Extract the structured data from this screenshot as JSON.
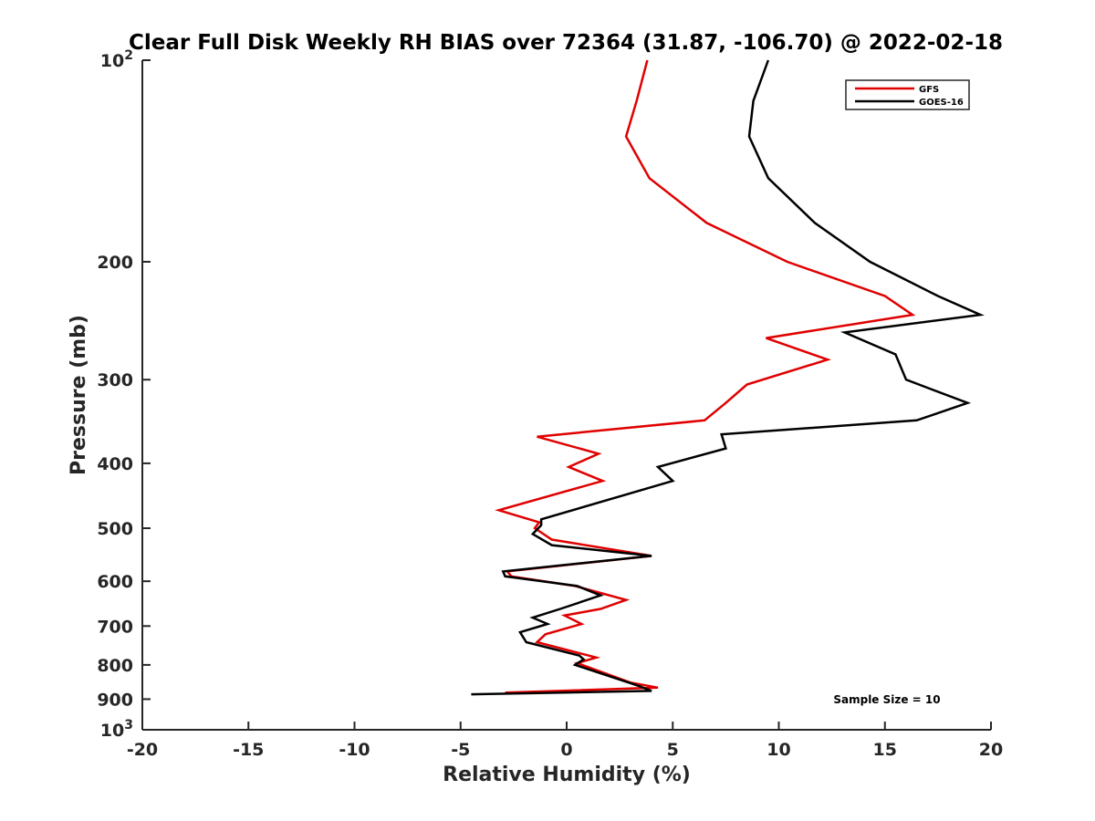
{
  "chart_data": {
    "type": "line",
    "title": "Clear Full Disk Weekly RH BIAS over 72364 (31.87, -106.70) @ 2022-02-18",
    "xlabel": "Relative Humidity (%)",
    "ylabel": "Pressure (mb)",
    "xlim": [
      -20,
      20
    ],
    "ylim": [
      100,
      1000
    ],
    "y_scale": "log",
    "y_reversed": true,
    "x_ticks": [
      "-20",
      "-15",
      "-10",
      "-5",
      "0",
      "5",
      "10",
      "15",
      "20"
    ],
    "y_ticks": [
      {
        "value": 100,
        "base": "10",
        "exp": "2"
      },
      {
        "value": 200,
        "label": "200"
      },
      {
        "value": 300,
        "label": "300"
      },
      {
        "value": 400,
        "label": "400"
      },
      {
        "value": 500,
        "label": "500"
      },
      {
        "value": 600,
        "label": "600"
      },
      {
        "value": 700,
        "label": "700"
      },
      {
        "value": 800,
        "label": "800"
      },
      {
        "value": 900,
        "label": "900"
      },
      {
        "value": 1000,
        "base": "10",
        "exp": "3"
      }
    ],
    "grid": false,
    "legend_position": "top-right",
    "series": [
      {
        "name": "GFS",
        "color": "#e00000",
        "points": [
          [
            3.8,
            100
          ],
          [
            3.3,
            115
          ],
          [
            2.8,
            130
          ],
          [
            3.9,
            150
          ],
          [
            6.6,
            175
          ],
          [
            10.4,
            200
          ],
          [
            15.0,
            225
          ],
          [
            16.3,
            240
          ],
          [
            9.4,
            260
          ],
          [
            12.3,
            280
          ],
          [
            8.5,
            305
          ],
          [
            7.5,
            325
          ],
          [
            6.5,
            345
          ],
          [
            -1.4,
            365
          ],
          [
            1.5,
            387
          ],
          [
            0.1,
            405
          ],
          [
            1.7,
            425
          ],
          [
            -3.2,
            470
          ],
          [
            -1.3,
            490
          ],
          [
            -1.5,
            500
          ],
          [
            -0.7,
            520
          ],
          [
            4.0,
            550
          ],
          [
            -2.8,
            580
          ],
          [
            -2.6,
            590
          ],
          [
            0.4,
            610
          ],
          [
            2.8,
            640
          ],
          [
            1.6,
            660
          ],
          [
            -0.1,
            675
          ],
          [
            0.7,
            695
          ],
          [
            -1.0,
            720
          ],
          [
            -1.4,
            740
          ],
          [
            1.4,
            780
          ],
          [
            0.5,
            795
          ],
          [
            3.0,
            850
          ],
          [
            4.3,
            865
          ],
          [
            -2.9,
            880
          ]
        ]
      },
      {
        "name": "GOES-16",
        "color": "#000000",
        "points": [
          [
            9.5,
            100
          ],
          [
            8.8,
            115
          ],
          [
            8.6,
            130
          ],
          [
            9.5,
            150
          ],
          [
            11.7,
            175
          ],
          [
            14.3,
            200
          ],
          [
            17.5,
            225
          ],
          [
            19.5,
            240
          ],
          [
            13.1,
            255
          ],
          [
            15.5,
            275
          ],
          [
            16.0,
            300
          ],
          [
            18.9,
            325
          ],
          [
            16.5,
            345
          ],
          [
            7.3,
            362
          ],
          [
            7.5,
            380
          ],
          [
            4.3,
            405
          ],
          [
            5.0,
            425
          ],
          [
            -1.2,
            485
          ],
          [
            -1.2,
            495
          ],
          [
            -1.6,
            510
          ],
          [
            -0.7,
            530
          ],
          [
            4.0,
            550
          ],
          [
            -3.0,
            580
          ],
          [
            -2.9,
            590
          ],
          [
            0.5,
            610
          ],
          [
            1.6,
            630
          ],
          [
            -0.3,
            660
          ],
          [
            -1.6,
            680
          ],
          [
            -0.9,
            695
          ],
          [
            -2.2,
            715
          ],
          [
            -1.9,
            740
          ],
          [
            0.6,
            775
          ],
          [
            0.8,
            785
          ],
          [
            0.4,
            800
          ],
          [
            3.4,
            860
          ],
          [
            4.0,
            875
          ],
          [
            -4.5,
            885
          ]
        ]
      }
    ],
    "annotations": [
      "Sample Size = 10"
    ]
  }
}
